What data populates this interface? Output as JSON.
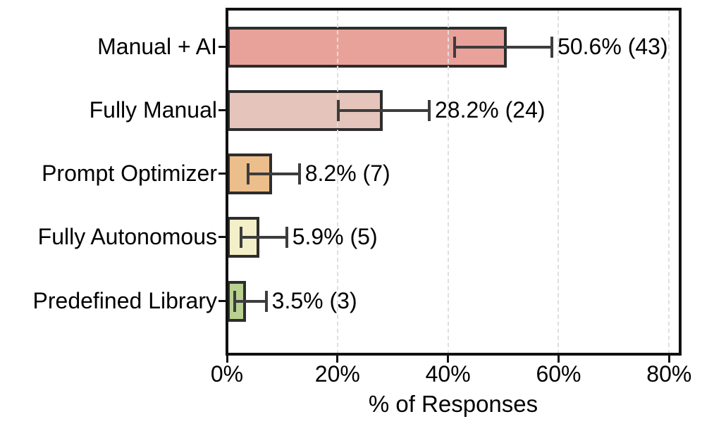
{
  "figure": {
    "background": "#ffffff"
  },
  "chart_data": {
    "type": "bar",
    "orientation": "horizontal",
    "title": "",
    "xlabel": "% of Responses",
    "ylabel": "",
    "categories": [
      "Manual + AI",
      "Fully Manual",
      "Prompt Optimizer",
      "Fully Autonomous",
      "Predefined Library"
    ],
    "values": [
      50.6,
      28.2,
      8.2,
      5.9,
      3.5
    ],
    "counts": [
      43,
      24,
      7,
      5,
      3
    ],
    "bar_labels": [
      "50.6% (43)",
      "28.2% (24)",
      "8.2% (7)",
      "5.9% (5)",
      "3.5% (3)"
    ],
    "error_low": [
      41.2,
      20.2,
      3.8,
      2.5,
      1.4
    ],
    "error_high": [
      58.8,
      36.6,
      13.1,
      10.8,
      7.1
    ],
    "x_ticks": [
      {
        "value": 0,
        "label": "0%"
      },
      {
        "value": 20,
        "label": "20%"
      },
      {
        "value": 40,
        "label": "40%"
      },
      {
        "value": 60,
        "label": "60%"
      },
      {
        "value": 80,
        "label": "80%"
      }
    ],
    "xlim": [
      0,
      82
    ],
    "grid": {
      "axis": "x",
      "style": "dashed"
    },
    "legend": "none",
    "colors": {
      "bars": [
        "#E9A29A",
        "#E5C4BB",
        "#ECBE8B",
        "#F3EFC8",
        "#B9D190"
      ],
      "bar_edge": "#2d2d2d",
      "error_bar": "#3d3d3d",
      "gridline": "#dfdfdf",
      "spine": "#111111",
      "text": "#000000"
    }
  }
}
